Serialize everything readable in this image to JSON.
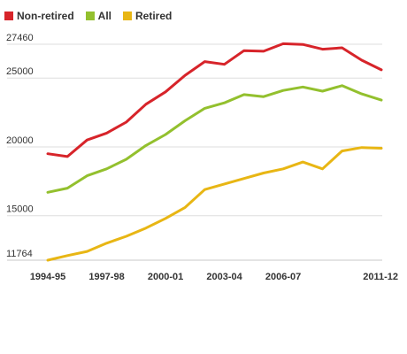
{
  "chart_data": {
    "type": "line",
    "title": "",
    "xlabel": "",
    "ylabel": "",
    "x": [
      "1994-95",
      "1995-96",
      "1996-97",
      "1997-98",
      "1998-99",
      "1999-00",
      "2000-01",
      "2001-02",
      "2002-03",
      "2003-04",
      "2004-05",
      "2005-06",
      "2006-07",
      "2007-08",
      "2008-09",
      "2009-10",
      "2010-11",
      "2011-12"
    ],
    "x_tick_labels": [
      "1994-95",
      "1997-98",
      "2000-01",
      "2003-04",
      "2006-07",
      "2011-12"
    ],
    "y_tick_labels": [
      "11764",
      "15000",
      "20000",
      "25000",
      "27460"
    ],
    "ylim": [
      11764,
      27460
    ],
    "legend_position": "top-left",
    "grid": true,
    "series": [
      {
        "name": "Non-retired",
        "color": "#d7242a",
        "values": [
          19500,
          19300,
          20500,
          21000,
          21800,
          23100,
          24000,
          25200,
          26200,
          26000,
          27000,
          26950,
          27500,
          27450,
          27100,
          27200,
          26300,
          25600
        ]
      },
      {
        "name": "All",
        "color": "#93c02e",
        "values": [
          16700,
          17000,
          17900,
          18400,
          19100,
          20100,
          20900,
          21900,
          22800,
          23200,
          23800,
          23650,
          24100,
          24350,
          24050,
          24450,
          23850,
          23400
        ]
      },
      {
        "name": "Retired",
        "color": "#e8b614",
        "values": [
          11764,
          12100,
          12400,
          13000,
          13500,
          14100,
          14800,
          15600,
          16900,
          17300,
          17700,
          18100,
          18400,
          18900,
          18400,
          19700,
          19950,
          19900
        ]
      }
    ]
  }
}
